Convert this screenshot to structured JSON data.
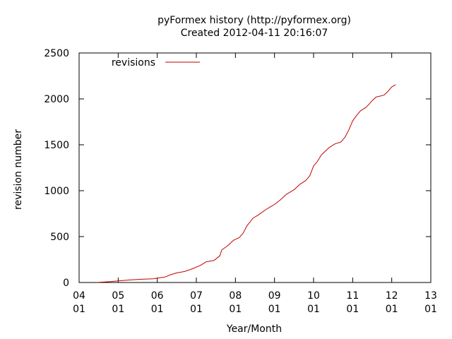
{
  "chart_data": {
    "type": "line",
    "title": "pyFormex history (http://pyformex.org)",
    "subtitle": "Created 2012-04-11 20:16:07",
    "xlabel": "Year/Month",
    "ylabel": "revision number",
    "xlim": [
      4.0,
      13.0
    ],
    "ylim": [
      0,
      2500
    ],
    "x_ticks": [
      {
        "value": 4,
        "year": "04",
        "month": "01"
      },
      {
        "value": 5,
        "year": "05",
        "month": "01"
      },
      {
        "value": 6,
        "year": "06",
        "month": "01"
      },
      {
        "value": 7,
        "year": "07",
        "month": "01"
      },
      {
        "value": 8,
        "year": "08",
        "month": "01"
      },
      {
        "value": 9,
        "year": "09",
        "month": "01"
      },
      {
        "value": 10,
        "year": "10",
        "month": "01"
      },
      {
        "value": 11,
        "year": "11",
        "month": "01"
      },
      {
        "value": 12,
        "year": "12",
        "month": "01"
      },
      {
        "value": 13,
        "year": "13",
        "month": "01"
      }
    ],
    "y_ticks": [
      {
        "value": 0,
        "label": "0"
      },
      {
        "value": 500,
        "label": "500"
      },
      {
        "value": 1000,
        "label": "1000"
      },
      {
        "value": 1500,
        "label": "1500"
      },
      {
        "value": 2000,
        "label": "2000"
      },
      {
        "value": 2500,
        "label": "2500"
      }
    ],
    "grid": false,
    "legend": {
      "position": "top-left",
      "entries": [
        "revisions"
      ]
    },
    "series": [
      {
        "name": "revisions",
        "color": "#c00000",
        "points": [
          [
            4.5,
            2
          ],
          [
            4.8,
            10
          ],
          [
            5.0,
            18
          ],
          [
            5.3,
            28
          ],
          [
            5.6,
            35
          ],
          [
            5.9,
            40
          ],
          [
            6.0,
            48
          ],
          [
            6.2,
            60
          ],
          [
            6.35,
            85
          ],
          [
            6.5,
            105
          ],
          [
            6.7,
            120
          ],
          [
            6.9,
            150
          ],
          [
            7.1,
            185
          ],
          [
            7.25,
            225
          ],
          [
            7.45,
            240
          ],
          [
            7.6,
            290
          ],
          [
            7.65,
            355
          ],
          [
            7.8,
            400
          ],
          [
            7.95,
            460
          ],
          [
            8.1,
            490
          ],
          [
            8.2,
            540
          ],
          [
            8.3,
            620
          ],
          [
            8.45,
            700
          ],
          [
            8.6,
            740
          ],
          [
            8.8,
            800
          ],
          [
            9.0,
            850
          ],
          [
            9.15,
            900
          ],
          [
            9.3,
            960
          ],
          [
            9.5,
            1010
          ],
          [
            9.65,
            1070
          ],
          [
            9.8,
            1110
          ],
          [
            9.9,
            1160
          ],
          [
            10.0,
            1270
          ],
          [
            10.1,
            1320
          ],
          [
            10.2,
            1390
          ],
          [
            10.4,
            1470
          ],
          [
            10.55,
            1510
          ],
          [
            10.7,
            1530
          ],
          [
            10.8,
            1580
          ],
          [
            10.9,
            1660
          ],
          [
            11.0,
            1760
          ],
          [
            11.1,
            1820
          ],
          [
            11.2,
            1870
          ],
          [
            11.35,
            1910
          ],
          [
            11.5,
            1980
          ],
          [
            11.6,
            2020
          ],
          [
            11.8,
            2040
          ],
          [
            11.9,
            2080
          ],
          [
            12.0,
            2130
          ],
          [
            12.1,
            2155
          ]
        ]
      }
    ]
  }
}
